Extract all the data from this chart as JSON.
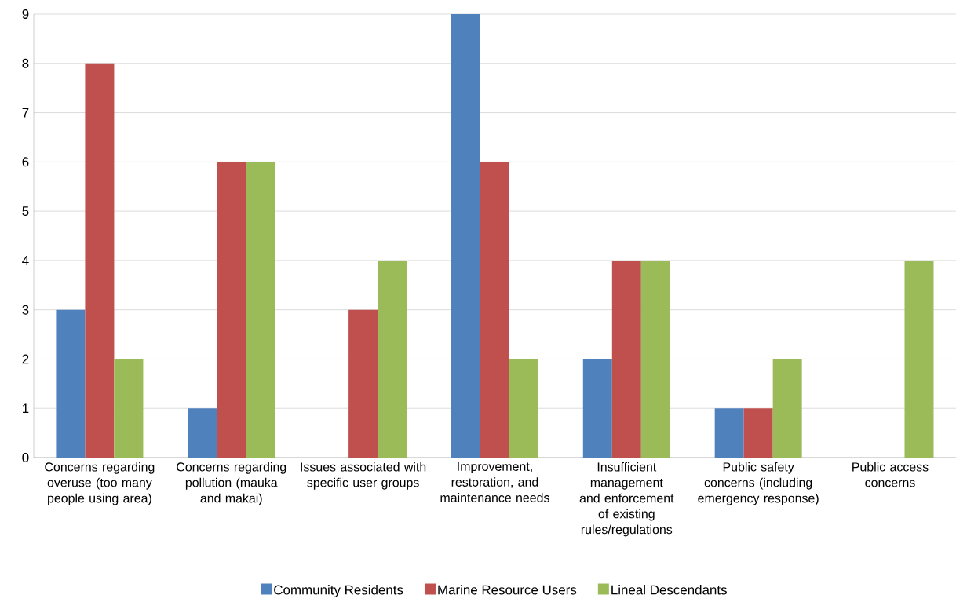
{
  "chart_data": {
    "type": "bar",
    "categories": [
      "Concerns regarding overuse (too many people using area)",
      "Concerns regarding pollution (mauka and makai)",
      "Issues associated with specific user groups",
      "Improvement, restoration, and maintenance needs",
      "Insufficient management and enforcement of existing rules/regulations",
      "Public safety concerns (including emergency response)",
      "Public access concerns"
    ],
    "series": [
      {
        "name": "Community Residents",
        "color": "#4f81bd",
        "values": [
          3,
          1,
          0,
          9,
          2,
          1,
          0
        ]
      },
      {
        "name": "Marine Resource Users",
        "color": "#c0504d",
        "values": [
          8,
          6,
          3,
          6,
          4,
          1,
          0
        ]
      },
      {
        "name": "Lineal Descendants",
        "color": "#9bbb59",
        "values": [
          2,
          6,
          4,
          2,
          4,
          2,
          4
        ]
      }
    ],
    "ylim": [
      0,
      9
    ],
    "yticks": [
      0,
      1,
      2,
      3,
      4,
      5,
      6,
      7,
      8,
      9
    ],
    "grid": "y",
    "legend": "bottom"
  }
}
